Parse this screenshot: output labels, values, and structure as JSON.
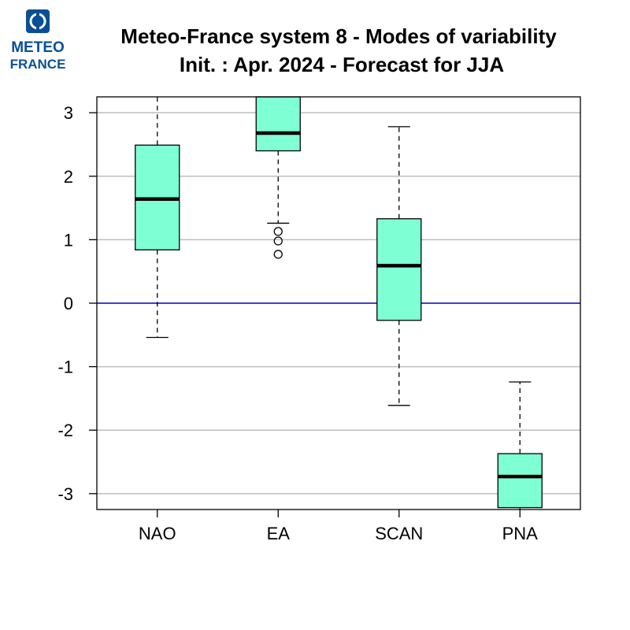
{
  "logo": {
    "line1": "METEO",
    "line2": "FRANCE"
  },
  "colors": {
    "box_fill": "#7fffd4",
    "zero_line": "#0000cc",
    "grid": "#bebebe",
    "logo_blue": "#0a4f96"
  },
  "chart_data": {
    "type": "box",
    "title": "Meteo-France system 8 - Modes of variability",
    "subtitle": "Init. : Apr. 2024 - Forecast for JJA",
    "xlabel": "",
    "ylabel": "",
    "ylim": [
      -3.25,
      3.25
    ],
    "yticks": [
      3,
      2,
      1,
      0,
      -1,
      -2,
      -3
    ],
    "grid": true,
    "reference_line": 0,
    "categories": [
      "NAO",
      "EA",
      "SCAN",
      "PNA"
    ],
    "boxes": [
      {
        "name": "NAO",
        "whisker_low": -0.54,
        "q1": 0.84,
        "median": 1.64,
        "q3": 2.49,
        "whisker_high": 3.25,
        "outliers": []
      },
      {
        "name": "EA",
        "whisker_low": 1.26,
        "q1": 2.4,
        "median": 2.68,
        "q3": 3.25,
        "whisker_high": 3.25,
        "outliers": [
          1.13,
          0.98,
          0.77
        ]
      },
      {
        "name": "SCAN",
        "whisker_low": -1.61,
        "q1": -0.27,
        "median": 0.59,
        "q3": 1.33,
        "whisker_high": 2.78,
        "outliers": []
      },
      {
        "name": "PNA",
        "whisker_low": -3.25,
        "q1": -3.22,
        "median": -2.73,
        "q3": -2.37,
        "whisker_high": -1.24,
        "outliers": []
      }
    ]
  }
}
